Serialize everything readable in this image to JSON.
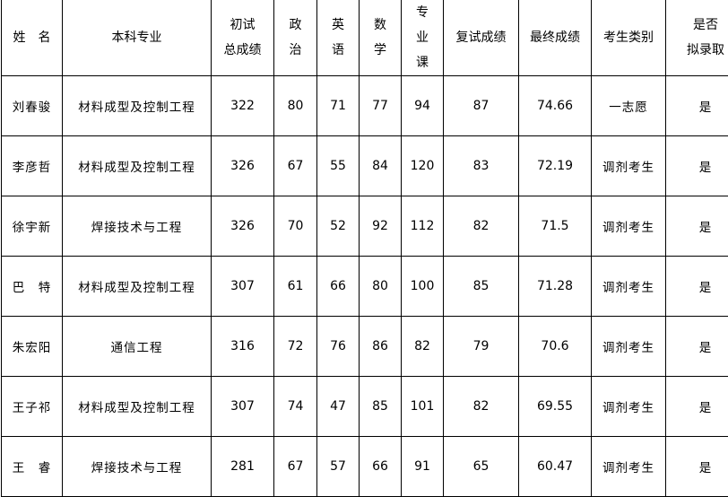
{
  "headers": [
    "姓　名",
    "本科专业",
    "初试\n总成绩",
    "政\n治",
    "英\n语",
    "数\n学",
    "专\n业\n课",
    "复试成绩",
    "最终成绩",
    "考生类别",
    "是否\n拟录取"
  ],
  "rows": [
    [
      "刘春骏",
      "材料成型及控制工程",
      "322",
      "80",
      "71",
      "77",
      "94",
      "87",
      "74.66",
      "一志愿",
      "是"
    ],
    [
      "李彦哲",
      "材料成型及控制工程",
      "326",
      "67",
      "55",
      "84",
      "120",
      "83",
      "72.19",
      "调剂考生",
      "是"
    ],
    [
      "徐宇新",
      "焊接技术与工程",
      "326",
      "70",
      "52",
      "92",
      "112",
      "82",
      "71.5",
      "调剂考生",
      "是"
    ],
    [
      "巴　特",
      "材料成型及控制工程",
      "307",
      "61",
      "66",
      "80",
      "100",
      "85",
      "71.28",
      "调剂考生",
      "是"
    ],
    [
      "朱宏阳",
      "通信工程",
      "316",
      "72",
      "76",
      "86",
      "82",
      "79",
      "70.6",
      "调剂考生",
      "是"
    ],
    [
      "王子祁",
      "材料成型及控制工程",
      "307",
      "74",
      "47",
      "85",
      "101",
      "82",
      "69.55",
      "调剂考生",
      "是"
    ],
    [
      "王　睿",
      "焊接技术与工程",
      "281",
      "67",
      "57",
      "66",
      "91",
      "65",
      "60.47",
      "调剂考生",
      "是"
    ]
  ]
}
